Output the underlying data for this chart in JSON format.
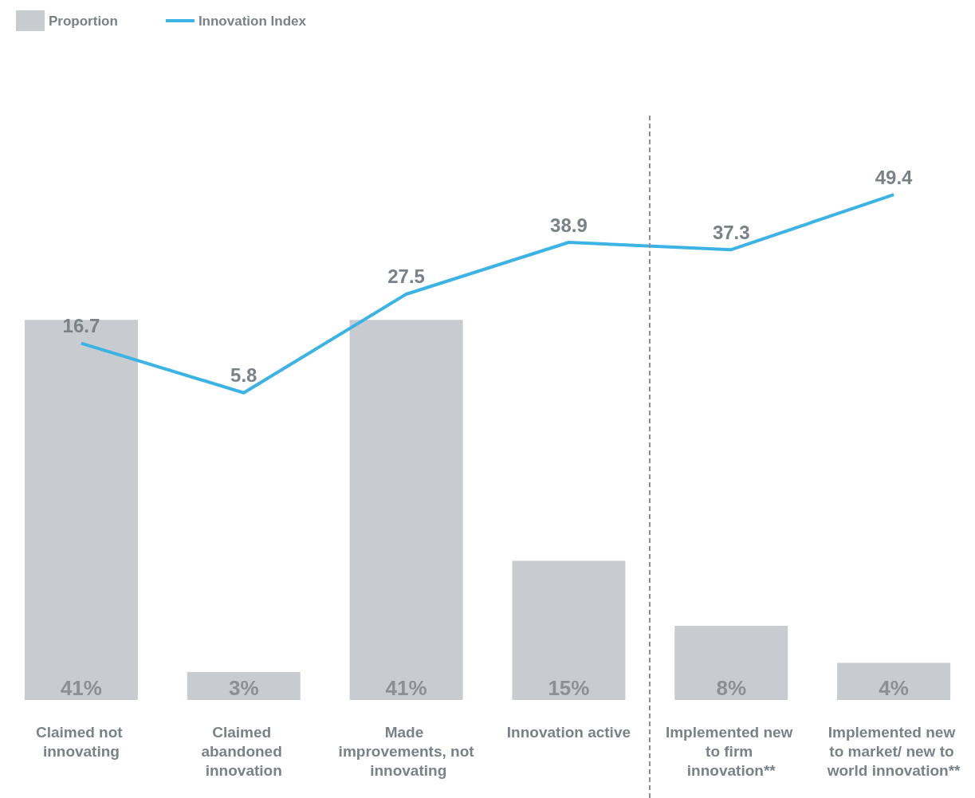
{
  "chart_data": {
    "type": "bar",
    "categories": [
      "Claimed not innovating",
      "Claimed abandoned innovation",
      "Made improvements, not innovating",
      "Innovation active",
      "Implemented new to firm innovation**",
      "Implemented new to market/ new to world innovation**"
    ],
    "series": [
      {
        "name": "Proportion",
        "color": "#c8cbd0",
        "values": [
          41,
          3,
          41,
          15,
          8,
          4
        ],
        "value_labels": [
          "41%",
          "3%",
          "41%",
          "15%",
          "8%",
          "4%"
        ]
      },
      {
        "name": "Innovation Index",
        "type": "line",
        "axis": "y2",
        "color": "#3bb3e4",
        "values": [
          16.7,
          5.8,
          27.5,
          38.9,
          37.3,
          49.4
        ]
      }
    ],
    "data_labels": true,
    "legend": "top left",
    "grid": false,
    "marker": "none",
    "line_style": "solid",
    "tick_labels": "x"
  }
}
